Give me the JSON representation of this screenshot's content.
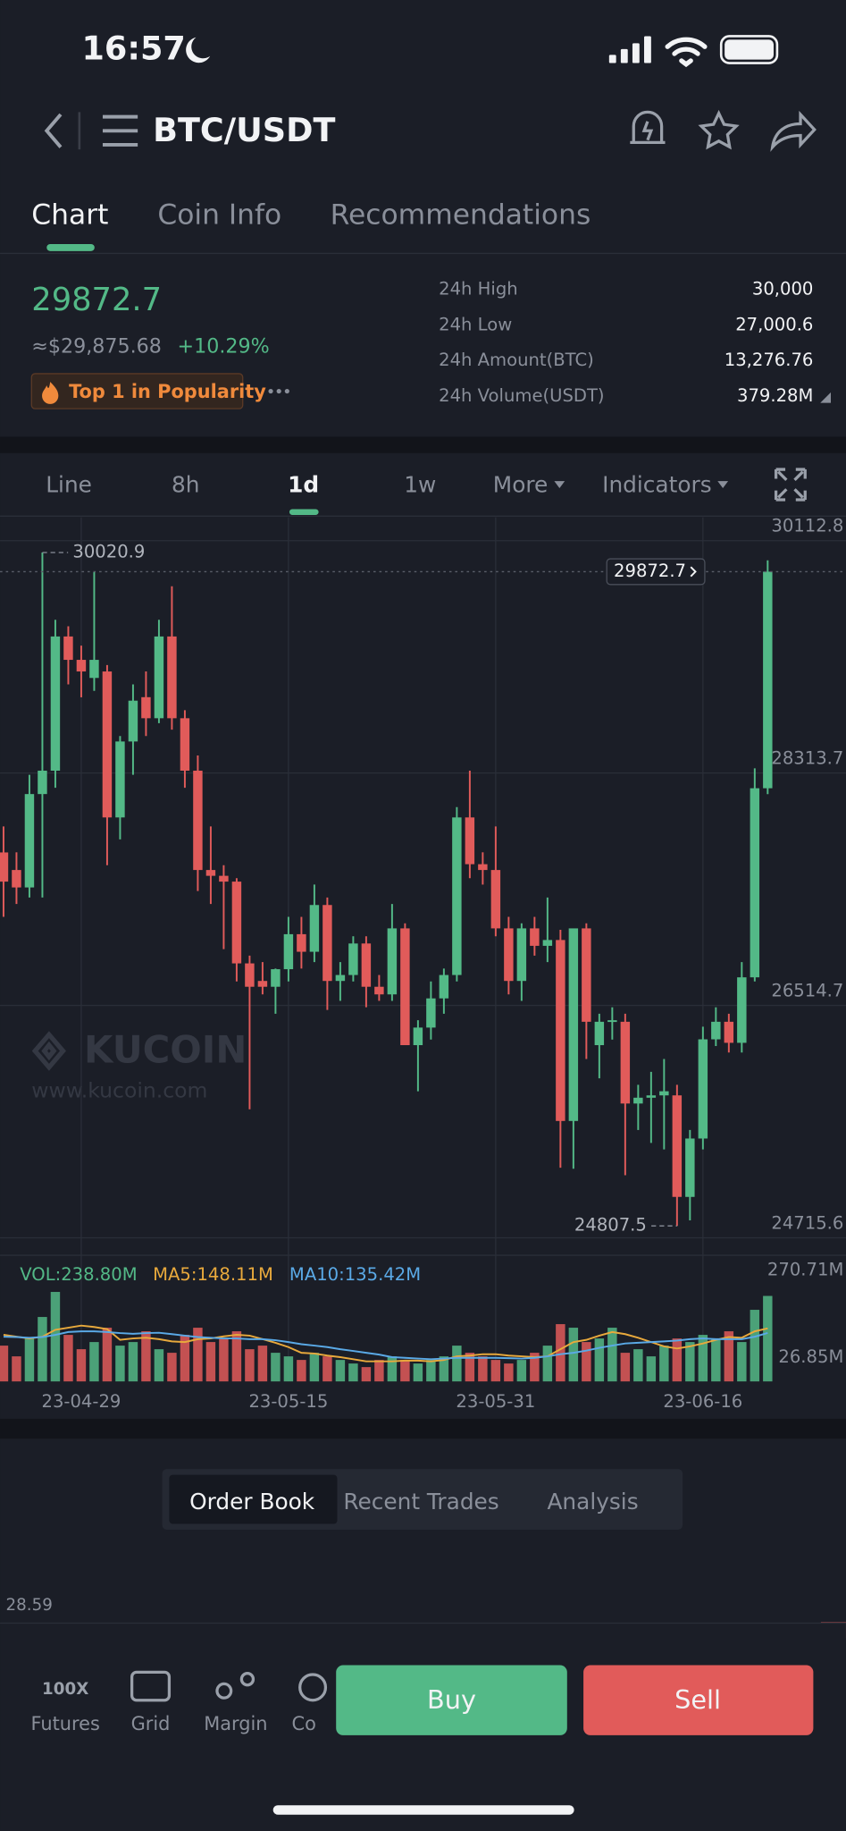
{
  "status": {
    "time": "16:57"
  },
  "nav": {
    "pair": "BTC/USDT"
  },
  "tabs": [
    "Chart",
    "Coin Info",
    "Recommendations"
  ],
  "price": {
    "last": "29872.7",
    "fiat": "≈$29,875.68",
    "change": "+10.29%",
    "badge": "Top 1 in Popularity"
  },
  "stats": [
    {
      "label": "24h High",
      "value": "30,000"
    },
    {
      "label": "24h Low",
      "value": "27,000.6"
    },
    {
      "label": "24h Amount(BTC)",
      "value": "13,276.76"
    },
    {
      "label": "24h Volume(USDT)",
      "value": "379.28M"
    }
  ],
  "timeframes": [
    "Line",
    "8h",
    "1d",
    "1w",
    "More",
    "Indicators"
  ],
  "watermark": {
    "brand": "KUCOIN",
    "url": "www.kucoin.com"
  },
  "chart_data": {
    "type": "candlestick",
    "up_color": "#53b987",
    "down_color": "#e15b5a",
    "ylim": [
      24607,
      30293.6
    ],
    "yticks": [
      30112.8,
      28313.7,
      26514.7,
      24715.6
    ],
    "xticks": [
      {
        "value": 6,
        "label": "23-04-29"
      },
      {
        "value": 22,
        "label": "23-05-15"
      },
      {
        "value": 38,
        "label": "23-05-31"
      },
      {
        "value": 54,
        "label": "23-06-16"
      }
    ],
    "grid": true,
    "ohlc": [
      [
        27699,
        27900,
        27200,
        27473
      ],
      [
        27563,
        27700,
        27300,
        27428
      ],
      [
        27428,
        28300,
        27350,
        28151
      ],
      [
        28151,
        30020.9,
        27350,
        28332
      ],
      [
        28332,
        29500,
        28200,
        29371
      ],
      [
        29371,
        29450,
        29000,
        29190
      ],
      [
        29190,
        29300,
        28900,
        29100
      ],
      [
        29050,
        29869,
        28950,
        29190
      ],
      [
        29100,
        29150,
        27600,
        27970
      ],
      [
        27970,
        28600,
        27800,
        28558
      ],
      [
        28558,
        29000,
        28300,
        28874
      ],
      [
        28901,
        29100,
        28600,
        28738
      ],
      [
        28738,
        29500,
        28700,
        29371
      ],
      [
        29371,
        29760,
        28650,
        28738
      ],
      [
        28738,
        28800,
        28200,
        28332
      ],
      [
        28332,
        28450,
        27400,
        27563
      ],
      [
        27563,
        27900,
        27300,
        27518
      ],
      [
        27518,
        27600,
        26950,
        27473
      ],
      [
        27473,
        27500,
        26700,
        26840
      ],
      [
        26840,
        26900,
        25710,
        26659
      ],
      [
        26704,
        26850,
        26600,
        26659
      ],
      [
        26659,
        26800,
        26450,
        26795
      ],
      [
        26795,
        27200,
        26700,
        27066
      ],
      [
        27066,
        27200,
        26800,
        26930
      ],
      [
        26930,
        27450,
        26850,
        27292
      ],
      [
        27292,
        27350,
        26480,
        26704
      ],
      [
        26704,
        26850,
        26550,
        26750
      ],
      [
        26750,
        27050,
        26700,
        26994
      ],
      [
        26994,
        27050,
        26500,
        26659
      ],
      [
        26659,
        26750,
        26550,
        26600
      ],
      [
        26600,
        27300,
        26550,
        27111
      ],
      [
        27111,
        27150,
        26250,
        26207
      ],
      [
        26207,
        26400,
        25850,
        26343
      ],
      [
        26343,
        26700,
        26250,
        26569
      ],
      [
        26569,
        26800,
        26450,
        26750
      ],
      [
        26750,
        28050,
        26700,
        27970
      ],
      [
        27970,
        28332,
        27500,
        27608
      ],
      [
        27608,
        27700,
        27450,
        27563
      ],
      [
        27563,
        27900,
        27050,
        27111
      ],
      [
        27111,
        27200,
        26600,
        26704
      ],
      [
        26704,
        27150,
        26550,
        27111
      ],
      [
        27111,
        27200,
        26900,
        26976
      ],
      [
        26976,
        27350,
        26850,
        27021
      ],
      [
        27021,
        27100,
        25258,
        25620
      ],
      [
        25620,
        27100,
        25250,
        27111
      ],
      [
        27111,
        27150,
        26100,
        26388
      ],
      [
        26207,
        26450,
        25950,
        26388
      ],
      [
        26388,
        26500,
        26250,
        26400
      ],
      [
        26388,
        26450,
        25200,
        25755
      ],
      [
        25755,
        25900,
        25550,
        25800
      ],
      [
        25800,
        26000,
        25450,
        25818
      ],
      [
        25818,
        26100,
        25400,
        25850
      ],
      [
        25818,
        25900,
        24807.5,
        25032
      ],
      [
        25032,
        25550,
        24850,
        25484
      ],
      [
        25484,
        26350,
        25400,
        26252
      ],
      [
        26252,
        26500,
        26200,
        26388
      ],
      [
        26388,
        26450,
        26150,
        26225
      ],
      [
        26225,
        26850,
        26150,
        26732
      ],
      [
        26732,
        28350,
        26700,
        28196
      ],
      [
        28196,
        29960,
        28150,
        29872.7
      ]
    ],
    "volume": {
      "legend": [
        "VOL:238.80M",
        "MA5:148.11M",
        "MA10:135.42M"
      ],
      "colors": [
        "#53b987",
        "#e8a93c",
        "#5aa9e6"
      ],
      "ylim": [
        0,
        270.71
      ],
      "yticks": [
        {
          "value": 270.71,
          "label": "270.71M"
        },
        {
          "value": 26.85,
          "label": "26.85M"
        }
      ],
      "values": [
        100,
        70,
        120,
        180,
        250,
        130,
        90,
        110,
        150,
        100,
        110,
        140,
        90,
        80,
        130,
        150,
        110,
        120,
        140,
        90,
        100,
        80,
        70,
        60,
        80,
        70,
        60,
        50,
        40,
        60,
        70,
        60,
        50,
        60,
        70,
        100,
        80,
        70,
        60,
        50,
        60,
        80,
        100,
        160,
        150,
        110,
        120,
        150,
        80,
        90,
        70,
        100,
        120,
        110,
        130,
        120,
        140,
        110,
        200,
        238.8
      ],
      "ma5": [
        130,
        125,
        120,
        125,
        144,
        150,
        156,
        152,
        146,
        116,
        120,
        122,
        118,
        112,
        110,
        118,
        120,
        126,
        130,
        128,
        118,
        108,
        96,
        80,
        78,
        72,
        68,
        62,
        56,
        56,
        56,
        58,
        58,
        56,
        60,
        70,
        72,
        76,
        76,
        72,
        70,
        68,
        70,
        90,
        110,
        116,
        128,
        138,
        132,
        122,
        110,
        98,
        92,
        98,
        106,
        116,
        124,
        122,
        140,
        148.11
      ],
      "ma10": [
        125,
        124,
        122,
        124,
        130,
        138,
        140,
        140,
        138,
        135,
        133,
        135,
        136,
        132,
        128,
        124,
        122,
        120,
        120,
        118,
        118,
        115,
        110,
        104,
        100,
        96,
        90,
        85,
        80,
        75,
        68,
        66,
        64,
        62,
        64,
        66,
        66,
        66,
        66,
        65,
        64,
        66,
        70,
        76,
        80,
        86,
        94,
        100,
        106,
        108,
        110,
        112,
        114,
        118,
        120,
        118,
        118,
        118,
        125,
        135.42
      ]
    }
  },
  "book_tabs": [
    "Order Book",
    "Recent Trades",
    "Analysis"
  ],
  "book": {
    "edge_value": "28.59"
  },
  "toolbar": {
    "icon_text": "100X",
    "items": [
      "Futures",
      "Grid",
      "Margin",
      "Co"
    ],
    "buy": "Buy",
    "sell": "Sell"
  }
}
